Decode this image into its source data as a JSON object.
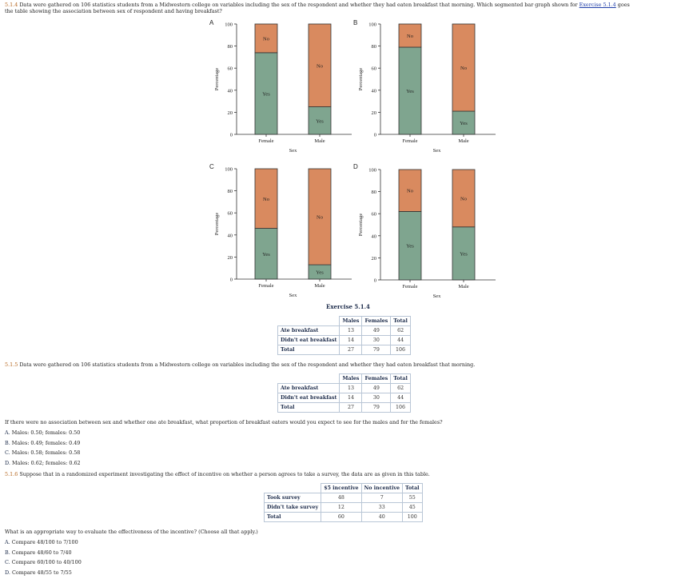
{
  "question1": {
    "number": "5.1.4",
    "text": "Data were gathered on 106 statistics students from a Midwestern college on variables including the sex of the respondent and whether they had eaten breakfast that morning. Which segmented bar graph shown for",
    "link": "Exercise 5.1.4",
    "tail1": "goes",
    "line2": "the table showing the association between sex of respondent and having breakfast?"
  },
  "panel_letters": [
    "A",
    "B",
    "C",
    "D"
  ],
  "colors": {
    "yes": "#7fa58f",
    "no": "#d98a5f",
    "border": "#333333"
  },
  "chart_data": [
    {
      "type": "bar",
      "stacked": true,
      "panel": "A",
      "categories": [
        "Female",
        "Male"
      ],
      "series": [
        {
          "name": "Yes",
          "values": [
            74,
            25
          ]
        },
        {
          "name": "No",
          "values": [
            26,
            75
          ]
        }
      ],
      "xlabel": "Sex",
      "ylabel": "Percentage",
      "ylim": [
        0,
        100
      ],
      "yticks": [
        "0",
        "20",
        "40",
        "60",
        "80",
        "100"
      ]
    },
    {
      "type": "bar",
      "stacked": true,
      "panel": "B",
      "categories": [
        "Female",
        "Male"
      ],
      "series": [
        {
          "name": "Yes",
          "values": [
            79,
            21
          ]
        },
        {
          "name": "No",
          "values": [
            21,
            79
          ]
        }
      ],
      "xlabel": "Sex",
      "ylabel": "Percentage",
      "ylim": [
        0,
        100
      ],
      "yticks": [
        "0",
        "20",
        "40",
        "60",
        "80",
        "100"
      ]
    },
    {
      "type": "bar",
      "stacked": true,
      "panel": "C",
      "categories": [
        "Female",
        "Male"
      ],
      "series": [
        {
          "name": "Yes",
          "values": [
            46,
            13
          ]
        },
        {
          "name": "No",
          "values": [
            54,
            87
          ]
        }
      ],
      "xlabel": "Sex",
      "ylabel": "Percentage",
      "ylim": [
        0,
        100
      ],
      "yticks": [
        "0",
        "20",
        "40",
        "60",
        "80",
        "100"
      ]
    },
    {
      "type": "bar",
      "stacked": true,
      "panel": "D",
      "categories": [
        "Female",
        "Male"
      ],
      "series": [
        {
          "name": "Yes",
          "values": [
            62,
            48
          ]
        },
        {
          "name": "No",
          "values": [
            38,
            52
          ]
        }
      ],
      "xlabel": "Sex",
      "ylabel": "Percentage",
      "ylim": [
        0,
        100
      ],
      "yticks": [
        "0",
        "20",
        "40",
        "60",
        "80",
        "100"
      ]
    }
  ],
  "exercise_caption": "Exercise 5.1.4",
  "table1": {
    "headers": [
      "Males",
      "Females",
      "Total"
    ],
    "rows": [
      {
        "label": "Ate breakfast",
        "values": [
          "13",
          "49",
          "62"
        ]
      },
      {
        "label": "Didn't eat breakfast",
        "values": [
          "14",
          "30",
          "44"
        ]
      },
      {
        "label": "Total",
        "values": [
          "27",
          "79",
          "106"
        ]
      }
    ]
  },
  "question2": {
    "number": "5.1.5",
    "text": "Data were gathered on 106 statistics students from a Midwestern college on variables including the sex of the respondent and whether they had eaten breakfast that morning."
  },
  "table2": {
    "headers": [
      "Males",
      "Females",
      "Total"
    ],
    "rows": [
      {
        "label": "Ate breakfast",
        "values": [
          "13",
          "49",
          "62"
        ]
      },
      {
        "label": "Didn't eat breakfast",
        "values": [
          "14",
          "30",
          "44"
        ]
      },
      {
        "label": "Total",
        "values": [
          "27",
          "79",
          "106"
        ]
      }
    ]
  },
  "question2_prompt": "If there were no association between sex and whether one ate breakfast, what proportion of breakfast eaters would you expect to see for the males and for the females?",
  "question2_options": [
    {
      "letter": "A.",
      "text": "Males: 0.50; females: 0.50"
    },
    {
      "letter": "B.",
      "text": "Males: 0.49; females: 0.49"
    },
    {
      "letter": "C.",
      "text": "Males: 0.58; females: 0.58"
    },
    {
      "letter": "D.",
      "text": "Males: 0.62; females: 0.62"
    }
  ],
  "question3": {
    "number": "5.1.6",
    "text": "Suppose that in a randomized experiment investigating the effect of incentive on whether a person agrees to take a survey, the data are as given in this table."
  },
  "table3": {
    "headers": [
      "$5 incentive",
      "No incentive",
      "Total"
    ],
    "rows": [
      {
        "label": "Took survey",
        "values": [
          "48",
          "7",
          "55"
        ]
      },
      {
        "label": "Didn't take survey",
        "values": [
          "12",
          "33",
          "45"
        ]
      },
      {
        "label": "Total",
        "values": [
          "60",
          "40",
          "100"
        ]
      }
    ]
  },
  "question3_prompt": "What is an appropriate way to evaluate the effectiveness of the incentive? (Choose all that apply.)",
  "question3_options": [
    {
      "letter": "A.",
      "text": "Compare 48/100 to 7/100"
    },
    {
      "letter": "B.",
      "text": "Compare 48/60 to 7/40"
    },
    {
      "letter": "C.",
      "text": "Compare 60/100 to 40/100"
    },
    {
      "letter": "D.",
      "text": "Compare 48/55 to 7/55"
    }
  ]
}
